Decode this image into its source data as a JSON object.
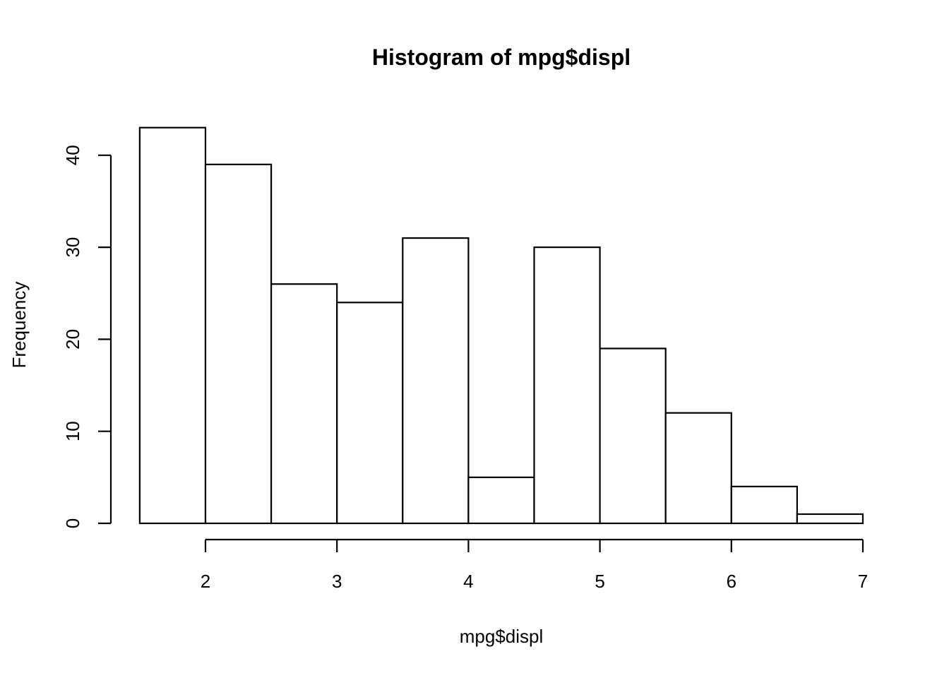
{
  "chart_data": {
    "type": "bar",
    "subtype": "histogram",
    "title": "Histogram of mpg$displ",
    "xlabel": "mpg$displ",
    "ylabel": "Frequency",
    "bins": [
      {
        "start": 1.5,
        "end": 2.0,
        "count": 43
      },
      {
        "start": 2.0,
        "end": 2.5,
        "count": 39
      },
      {
        "start": 2.5,
        "end": 3.0,
        "count": 26
      },
      {
        "start": 3.0,
        "end": 3.5,
        "count": 24
      },
      {
        "start": 3.5,
        "end": 4.0,
        "count": 31
      },
      {
        "start": 4.0,
        "end": 4.5,
        "count": 5
      },
      {
        "start": 4.5,
        "end": 5.0,
        "count": 30
      },
      {
        "start": 5.0,
        "end": 5.5,
        "count": 19
      },
      {
        "start": 5.5,
        "end": 6.0,
        "count": 12
      },
      {
        "start": 6.0,
        "end": 6.5,
        "count": 4
      },
      {
        "start": 6.5,
        "end": 7.0,
        "count": 1
      }
    ],
    "x_ticks": [
      2,
      3,
      4,
      5,
      6,
      7
    ],
    "y_ticks": [
      0,
      10,
      20,
      30,
      40
    ],
    "xlim": [
      1.5,
      7
    ],
    "ylim": [
      0,
      43
    ],
    "grid": false,
    "legend": "none",
    "bar_fill": "#ffffff",
    "bar_stroke": "#000000"
  }
}
